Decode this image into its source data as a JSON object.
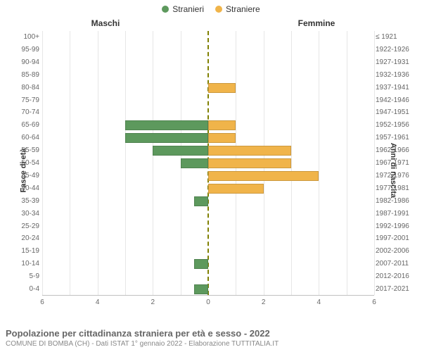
{
  "legend": {
    "male": {
      "label": "Stranieri",
      "color": "#5d995d"
    },
    "female": {
      "label": "Straniere",
      "color": "#f0b44a"
    }
  },
  "column_headers": {
    "left": "Maschi",
    "right": "Femmine"
  },
  "axis_labels": {
    "left": "Fasce di età",
    "right": "Anni di nascita"
  },
  "chart": {
    "type": "population-pyramid",
    "x_max": 6,
    "x_ticks": [
      6,
      4,
      2,
      0,
      2,
      4,
      6
    ],
    "background_color": "#ffffff",
    "grid_color": "#e6e6e6",
    "center_line_color": "#808000",
    "font_color": "#666666",
    "bar_height_ratio": 0.76,
    "rows": [
      {
        "age": "100+",
        "birth": "≤ 1921",
        "m": 0,
        "f": 0
      },
      {
        "age": "95-99",
        "birth": "1922-1926",
        "m": 0,
        "f": 0
      },
      {
        "age": "90-94",
        "birth": "1927-1931",
        "m": 0,
        "f": 0
      },
      {
        "age": "85-89",
        "birth": "1932-1936",
        "m": 0,
        "f": 0
      },
      {
        "age": "80-84",
        "birth": "1937-1941",
        "m": 0,
        "f": 1
      },
      {
        "age": "75-79",
        "birth": "1942-1946",
        "m": 0,
        "f": 0
      },
      {
        "age": "70-74",
        "birth": "1947-1951",
        "m": 0,
        "f": 0
      },
      {
        "age": "65-69",
        "birth": "1952-1956",
        "m": 3,
        "f": 1
      },
      {
        "age": "60-64",
        "birth": "1957-1961",
        "m": 3,
        "f": 1
      },
      {
        "age": "55-59",
        "birth": "1962-1966",
        "m": 2,
        "f": 3
      },
      {
        "age": "50-54",
        "birth": "1967-1971",
        "m": 1,
        "f": 3
      },
      {
        "age": "45-49",
        "birth": "1972-1976",
        "m": 0,
        "f": 4
      },
      {
        "age": "40-44",
        "birth": "1977-1981",
        "m": 0,
        "f": 2
      },
      {
        "age": "35-39",
        "birth": "1982-1986",
        "m": 0.5,
        "f": 0
      },
      {
        "age": "30-34",
        "birth": "1987-1991",
        "m": 0,
        "f": 0
      },
      {
        "age": "25-29",
        "birth": "1992-1996",
        "m": 0,
        "f": 0
      },
      {
        "age": "20-24",
        "birth": "1997-2001",
        "m": 0,
        "f": 0
      },
      {
        "age": "15-19",
        "birth": "2002-2006",
        "m": 0,
        "f": 0
      },
      {
        "age": "10-14",
        "birth": "2007-2011",
        "m": 0.5,
        "f": 0
      },
      {
        "age": "5-9",
        "birth": "2012-2016",
        "m": 0,
        "f": 0
      },
      {
        "age": "0-4",
        "birth": "2017-2021",
        "m": 0.5,
        "f": 0
      }
    ]
  },
  "footer": {
    "title": "Popolazione per cittadinanza straniera per età e sesso - 2022",
    "subtitle": "COMUNE DI BOMBA (CH) - Dati ISTAT 1° gennaio 2022 - Elaborazione TUTTITALIA.IT"
  }
}
